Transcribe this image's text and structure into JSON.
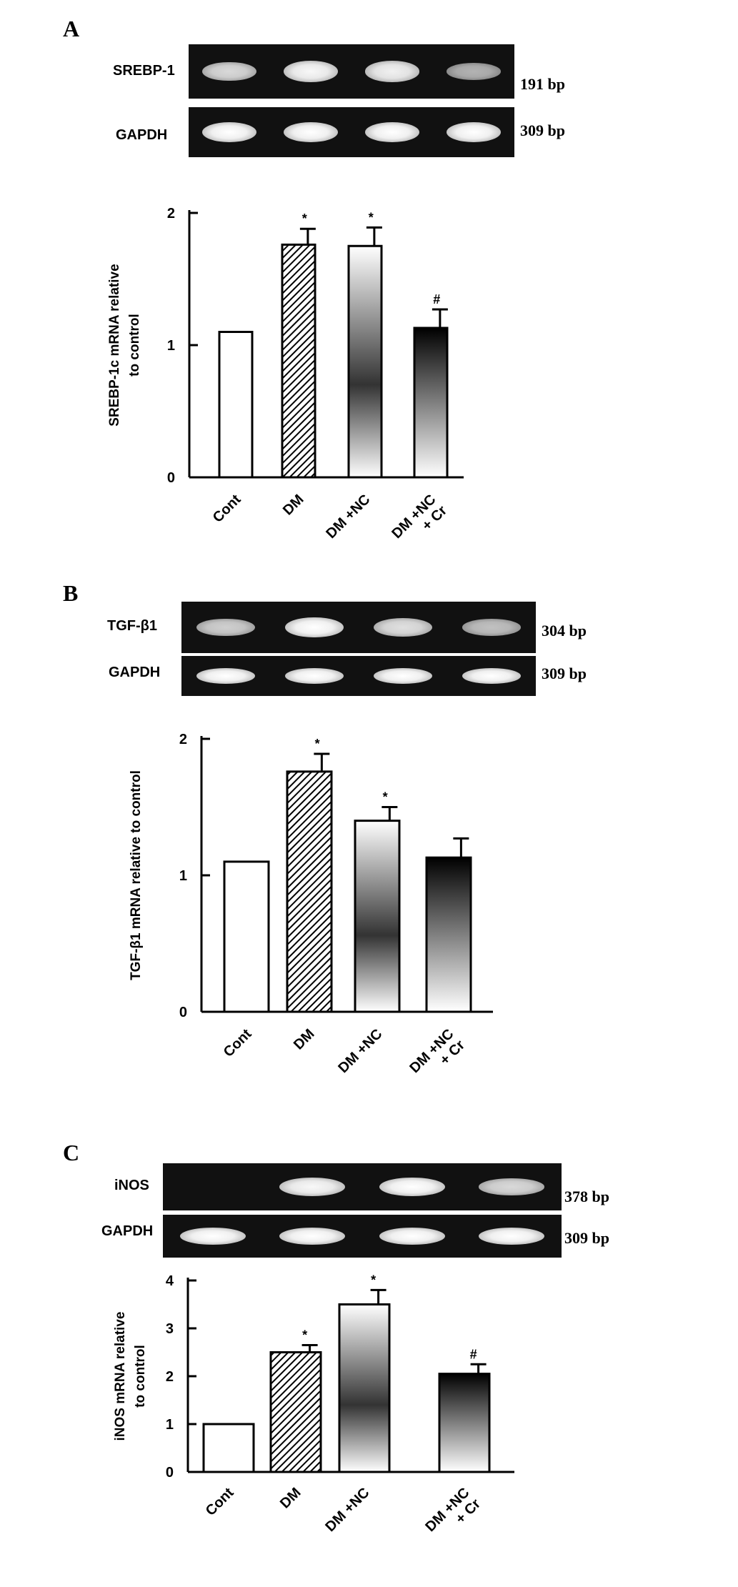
{
  "colors": {
    "background": "#ffffff",
    "gel": "#111111",
    "band": "#f5f5f5"
  },
  "panels": [
    {
      "letter": "A",
      "gel_rows": [
        {
          "label": "SREBP-1",
          "size": "191 bp",
          "band_intensity": [
            0.75,
            0.95,
            0.9,
            0.5
          ]
        },
        {
          "label": "GAPDH",
          "size": "309 bp",
          "band_intensity": [
            1,
            1,
            1,
            1
          ]
        }
      ]
    },
    {
      "letter": "B",
      "gel_rows": [
        {
          "label": "TGF-β1",
          "size": "304 bp",
          "band_intensity": [
            0.7,
            1,
            0.8,
            0.6
          ]
        },
        {
          "label": "GAPDH",
          "size": "309 bp",
          "band_intensity": [
            1,
            1,
            1,
            1
          ]
        }
      ]
    },
    {
      "letter": "C",
      "gel_rows": [
        {
          "label": "iNOS",
          "size": "378 bp",
          "band_intensity": [
            0,
            0.95,
            1,
            0.75
          ]
        },
        {
          "label": "GAPDH",
          "size": "309 bp",
          "band_intensity": [
            1,
            1,
            1,
            1
          ]
        }
      ]
    }
  ],
  "chart_data": [
    {
      "type": "bar",
      "ylabel_lines": [
        "SREBP-1c  mRNA  relative",
        "to control"
      ],
      "categories": [
        [
          "Cont"
        ],
        [
          "DM"
        ],
        [
          "DM +NC"
        ],
        [
          "DM +NC",
          "+ Cr"
        ]
      ],
      "values": [
        1.1,
        1.76,
        1.75,
        1.13
      ],
      "errors": [
        0,
        0.12,
        0.14,
        0.14
      ],
      "annotations": [
        "",
        "*",
        "*",
        "#"
      ],
      "fills": [
        "white",
        "hatch",
        "gradient-light",
        "gradient-dark"
      ],
      "ylim": [
        0,
        2
      ],
      "yticks": [
        0,
        1,
        2
      ]
    },
    {
      "type": "bar",
      "ylabel_lines": [
        "TGF-β1 mRNA  relative  to control"
      ],
      "categories": [
        [
          "Cont"
        ],
        [
          "DM"
        ],
        [
          "DM +NC"
        ],
        [
          "DM +NC",
          "+ Cr"
        ]
      ],
      "values": [
        1.1,
        1.76,
        1.4,
        1.13
      ],
      "errors": [
        0,
        0.13,
        0.1,
        0.14
      ],
      "annotations": [
        "",
        "*",
        "*",
        ""
      ],
      "fills": [
        "white",
        "hatch",
        "gradient-light",
        "gradient-dark"
      ],
      "ylim": [
        0,
        2
      ],
      "yticks": [
        0,
        1,
        2
      ]
    },
    {
      "type": "bar",
      "ylabel_lines": [
        "iNOS mRNA relative",
        "to control"
      ],
      "categories": [
        [
          "Cont"
        ],
        [
          "DM"
        ],
        [
          "DM +NC"
        ],
        [
          "DM +NC",
          "+ Cr"
        ]
      ],
      "values": [
        1.0,
        2.5,
        3.5,
        2.05
      ],
      "errors": [
        0,
        0.15,
        0.3,
        0.2
      ],
      "annotations": [
        "",
        "*",
        "*",
        "#"
      ],
      "fills": [
        "white",
        "hatch",
        "gradient-light",
        "gradient-dark"
      ],
      "ylim": [
        0,
        4
      ],
      "yticks": [
        0,
        1,
        2,
        3,
        4
      ]
    }
  ]
}
